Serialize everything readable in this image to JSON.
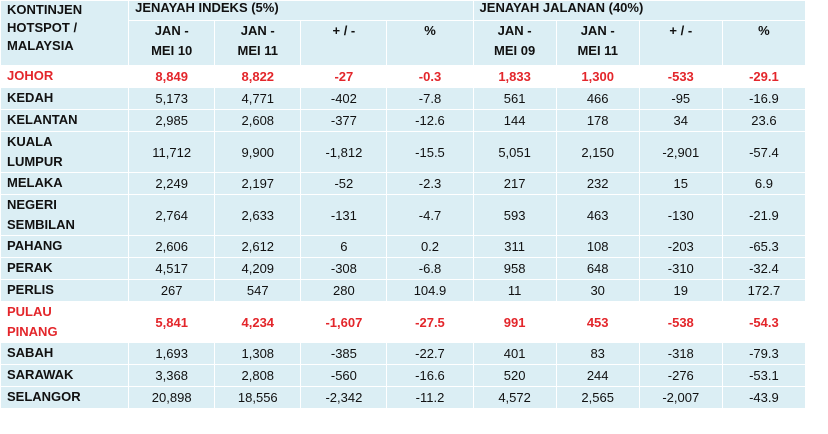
{
  "table": {
    "corner": "KONTINJEN HOTSPOT / MALAYSIA",
    "groups": [
      "JENAYAH INDEKS (5%)",
      "JENAYAH JALANAN (40%)"
    ],
    "subheaders": [
      "JAN - MEI 10",
      "JAN - MEI 11",
      "+ / -",
      "%",
      "JAN - MEI 09",
      "JAN - MEI 11",
      "+ / -",
      "%"
    ],
    "highlight_color": "#e3262b",
    "rows": [
      {
        "cells": [
          "JOHOR",
          "8,849",
          "8,822",
          "-27",
          "-0.3",
          "1,833",
          "1,300",
          "-533",
          "-29.1"
        ],
        "highlight": true
      },
      {
        "cells": [
          "KEDAH",
          "5,173",
          "4,771",
          "-402",
          "-7.8",
          "561",
          "466",
          "-95",
          "-16.9"
        ]
      },
      {
        "cells": [
          "KELANTAN",
          "2,985",
          "2,608",
          "-377",
          "-12.6",
          "144",
          "178",
          "34",
          "23.6"
        ]
      },
      {
        "cells": [
          "KUALA LUMPUR",
          "11,712",
          "9,900",
          "-1,812",
          "-15.5",
          "5,051",
          "2,150",
          "-2,901",
          "-57.4"
        ]
      },
      {
        "cells": [
          "MELAKA",
          "2,249",
          "2,197",
          "-52",
          "-2.3",
          "217",
          "232",
          "15",
          "6.9"
        ]
      },
      {
        "cells": [
          "NEGERI SEMBILAN",
          "2,764",
          "2,633",
          "-131",
          "-4.7",
          "593",
          "463",
          "-130",
          "-21.9"
        ]
      },
      {
        "cells": [
          "PAHANG",
          "2,606",
          "2,612",
          "6",
          "0.2",
          "311",
          "108",
          "-203",
          "-65.3"
        ]
      },
      {
        "cells": [
          "PERAK",
          "4,517",
          "4,209",
          "-308",
          "-6.8",
          "958",
          "648",
          "-310",
          "-32.4"
        ]
      },
      {
        "cells": [
          "PERLIS",
          "267",
          "547",
          "280",
          "104.9",
          "11",
          "30",
          "19",
          "172.7"
        ]
      },
      {
        "cells": [
          "PULAU PINANG",
          "5,841",
          "4,234",
          "-1,607",
          "-27.5",
          "991",
          "453",
          "-538",
          "-54.3"
        ],
        "highlight": true
      },
      {
        "cells": [
          "SABAH",
          "1,693",
          "1,308",
          "-385",
          "-22.7",
          "401",
          "83",
          "-318",
          "-79.3"
        ]
      },
      {
        "cells": [
          "SARAWAK",
          "3,368",
          "2,808",
          "-560",
          "-16.6",
          "520",
          "244",
          "-276",
          "-53.1"
        ]
      },
      {
        "cells": [
          "SELANGOR",
          "20,898",
          "18,556",
          "-2,342",
          "-11.2",
          "4,572",
          "2,565",
          "-2,007",
          "-43.9"
        ]
      }
    ]
  }
}
